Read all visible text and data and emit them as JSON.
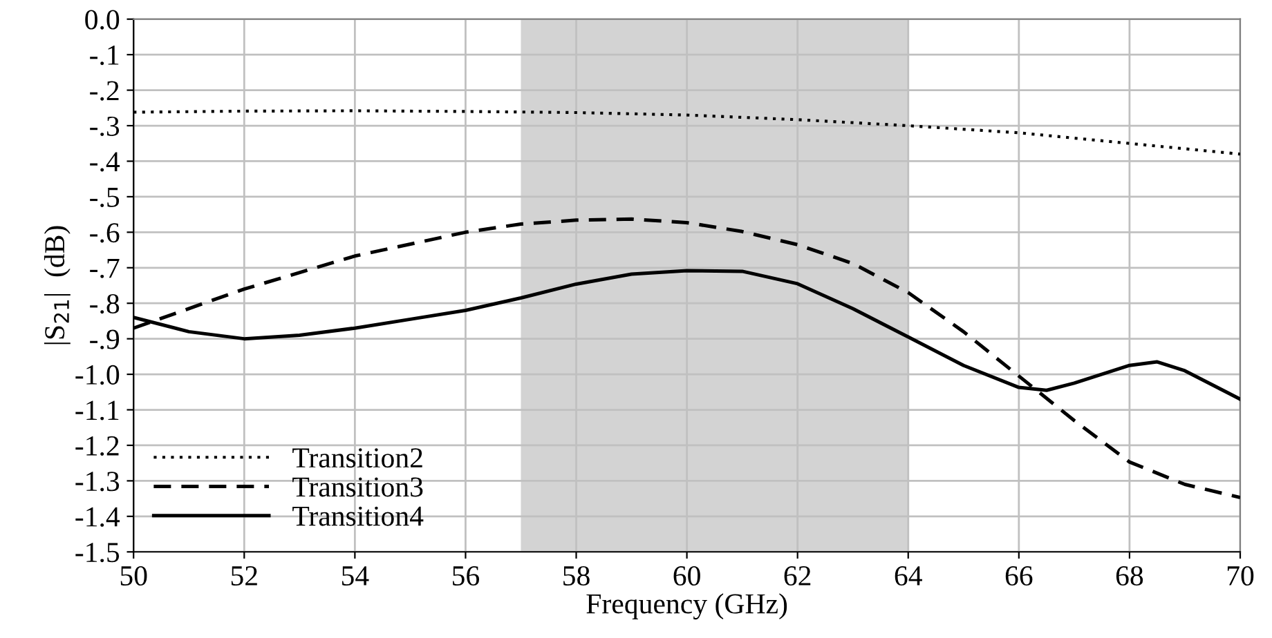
{
  "chart_data": {
    "type": "line",
    "xlabel": "Frequency (GHz)",
    "ylabel": "|S$_{21}$|  (dB)",
    "xlim": [
      50,
      70
    ],
    "xticks": [
      50,
      52,
      54,
      56,
      58,
      60,
      62,
      64,
      66,
      68,
      70
    ],
    "ylim": [
      -1.5,
      0.0
    ],
    "yticks": [
      {
        "value": 0.0,
        "label": "0.0"
      },
      {
        "value": -0.1,
        "label": "-.1"
      },
      {
        "value": -0.2,
        "label": "-.2"
      },
      {
        "value": -0.3,
        "label": "-.3"
      },
      {
        "value": -0.4,
        "label": "-.4"
      },
      {
        "value": -0.5,
        "label": "-.5"
      },
      {
        "value": -0.6,
        "label": "-.6"
      },
      {
        "value": -0.7,
        "label": "-.7"
      },
      {
        "value": -0.8,
        "label": "-.8"
      },
      {
        "value": -0.9,
        "label": "-.9"
      },
      {
        "value": -1.0,
        "label": "-1.0"
      },
      {
        "value": -1.1,
        "label": "-1.1"
      },
      {
        "value": -1.2,
        "label": "-1.2"
      },
      {
        "value": -1.3,
        "label": "-1.3"
      },
      {
        "value": -1.4,
        "label": "-1.4"
      },
      {
        "value": -1.5,
        "label": "-1.5"
      }
    ],
    "grid": true,
    "legend": "bottom left",
    "bands": [
      {
        "axis": "x",
        "from": 57,
        "to": 64,
        "color": "#d3d3d3"
      }
    ],
    "series": [
      {
        "name": "Transition2",
        "color": "#000000",
        "line_style": "dotted",
        "x": [
          50,
          52,
          54,
          56,
          58,
          60,
          62,
          64,
          66,
          68,
          70
        ],
        "values": [
          -0.262,
          -0.259,
          -0.258,
          -0.26,
          -0.263,
          -0.27,
          -0.283,
          -0.3,
          -0.32,
          -0.35,
          -0.38
        ]
      },
      {
        "name": "Transition3",
        "color": "#000000",
        "line_style": "dashed",
        "x": [
          50,
          52,
          54,
          56,
          57,
          58,
          59,
          60,
          61,
          62,
          63,
          64,
          65,
          66,
          67,
          68,
          69,
          70
        ],
        "values": [
          -0.87,
          -0.76,
          -0.667,
          -0.6,
          -0.577,
          -0.566,
          -0.563,
          -0.573,
          -0.598,
          -0.635,
          -0.688,
          -0.77,
          -0.88,
          -1.005,
          -1.13,
          -1.247,
          -1.31,
          -1.347
        ]
      },
      {
        "name": "Transition4",
        "color": "#000000",
        "line_style": "solid",
        "x": [
          50,
          51,
          52,
          53,
          54,
          55,
          56,
          57,
          58,
          59,
          60,
          61,
          62,
          63,
          64,
          65,
          66,
          66.5,
          67,
          68,
          68.5,
          69,
          70
        ],
        "values": [
          -0.84,
          -0.88,
          -0.9,
          -0.89,
          -0.87,
          -0.845,
          -0.82,
          -0.785,
          -0.746,
          -0.718,
          -0.708,
          -0.71,
          -0.745,
          -0.815,
          -0.895,
          -0.975,
          -1.037,
          -1.045,
          -1.025,
          -0.975,
          -0.965,
          -0.99,
          -1.07
        ]
      }
    ]
  }
}
